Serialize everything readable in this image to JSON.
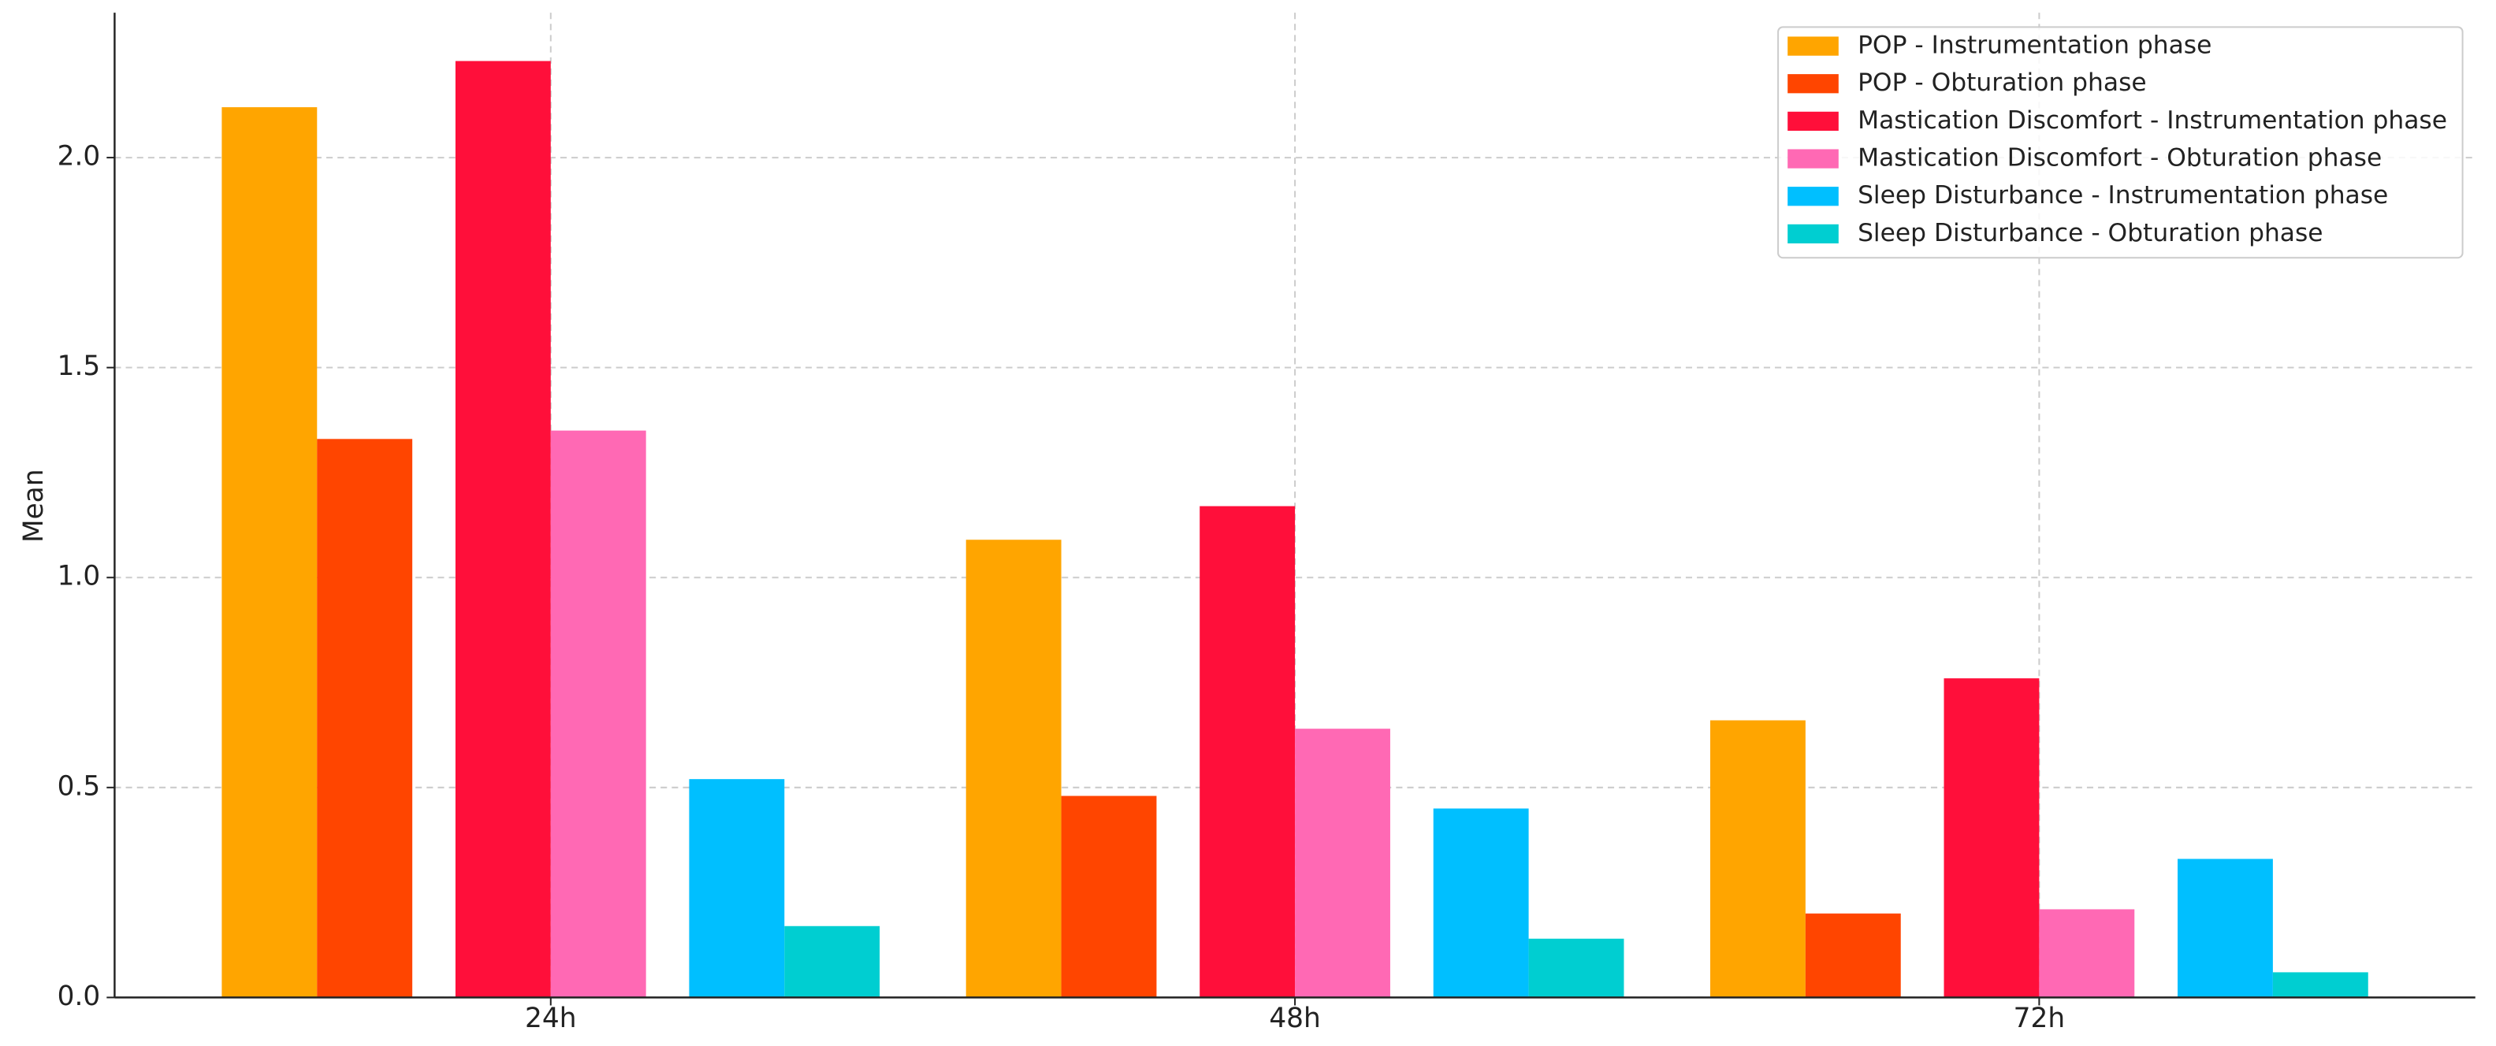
{
  "chart_data": {
    "type": "bar",
    "y_label": "Mean",
    "categories": [
      "24h",
      "48h",
      "72h"
    ],
    "series": [
      {
        "name": "POP - Instrumentation phase",
        "color": "#FFA500",
        "values": [
          2.12,
          1.09,
          0.66
        ]
      },
      {
        "name": "POP - Obturation phase",
        "color": "#FF4500",
        "values": [
          1.33,
          0.48,
          0.2
        ]
      },
      {
        "name": "Mastication Discomfort - Instrumentation phase",
        "color": "#FF0F3A",
        "values": [
          2.23,
          1.17,
          0.76
        ]
      },
      {
        "name": "Mastication Discomfort - Obturation phase",
        "color": "#FF69B4",
        "values": [
          1.35,
          0.64,
          0.21
        ]
      },
      {
        "name": "Sleep Disturbance - Instrumentation phase",
        "color": "#00BFFF",
        "values": [
          0.52,
          0.45,
          0.33
        ]
      },
      {
        "name": "Sleep Disturbance - Obturation phase",
        "color": "#00CED1",
        "values": [
          0.17,
          0.14,
          0.06
        ]
      }
    ],
    "ylim": [
      0,
      2.345
    ],
    "yticks": [
      {
        "value": 0,
        "label": "0.0"
      },
      {
        "value": 0.5,
        "label": "0.5"
      },
      {
        "value": 1,
        "label": "1.0"
      },
      {
        "value": 1.5,
        "label": "1.5"
      },
      {
        "value": 2,
        "label": "2.0"
      }
    ],
    "grid": true,
    "legend": "upper right"
  }
}
